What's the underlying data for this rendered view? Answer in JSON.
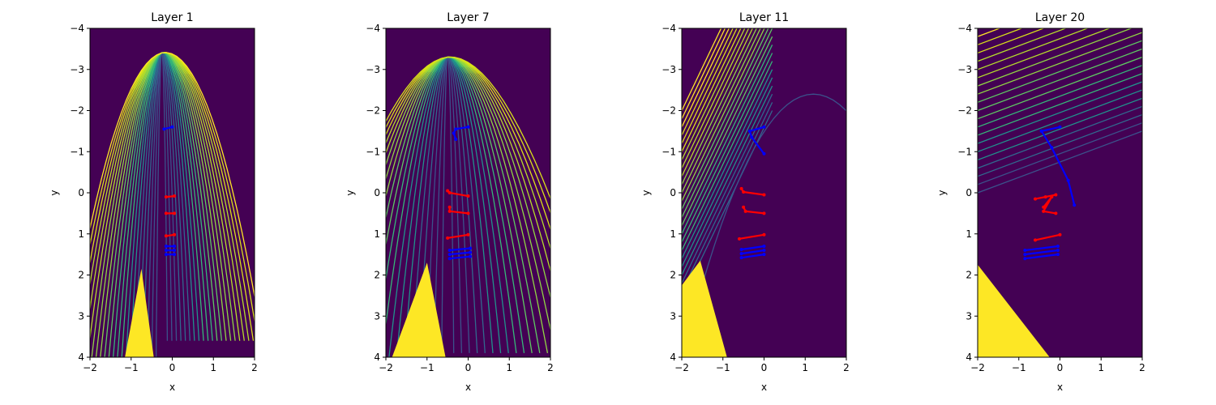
{
  "chart_data": {
    "type": "contour",
    "panels": [
      {
        "title": "Layer 1",
        "xlabel": "x",
        "ylabel": "y",
        "xlim": [
          -2,
          2
        ],
        "ylim": [
          4,
          -4
        ],
        "x_ticks": [
          "−2",
          "−1",
          "0",
          "1",
          "2"
        ],
        "y_ticks": [
          "−4",
          "−3",
          "−2",
          "−1",
          "0",
          "1",
          "2",
          "3",
          "4"
        ],
        "yellow_region": [
          [
            -0.75,
            1.85
          ],
          [
            -0.45,
            4.0
          ],
          [
            -1.15,
            4.0
          ]
        ],
        "contour_style": "steep curved lines rising to the left, dense near edges",
        "blue_trajectories": [
          [
            [
              -0.2,
              -1.55
            ],
            [
              0.0,
              -1.6
            ]
          ],
          [
            [
              -0.15,
              1.3
            ],
            [
              0.05,
              1.3
            ]
          ],
          [
            [
              -0.15,
              1.4
            ],
            [
              0.05,
              1.4
            ]
          ],
          [
            [
              -0.15,
              1.5
            ],
            [
              0.05,
              1.5
            ]
          ]
        ],
        "red_trajectories": [
          [
            [
              -0.15,
              0.5
            ],
            [
              0.05,
              0.5
            ]
          ],
          [
            [
              -0.15,
              0.1
            ],
            [
              0.05,
              0.08
            ]
          ],
          [
            [
              -0.15,
              1.05
            ],
            [
              0.05,
              1.02
            ]
          ]
        ]
      },
      {
        "title": "Layer 7",
        "xlabel": "x",
        "ylabel": "y",
        "xlim": [
          -2,
          2
        ],
        "ylim": [
          4,
          -4
        ],
        "x_ticks": [
          "−2",
          "−1",
          "0",
          "1",
          "2"
        ],
        "y_ticks": [
          "−4",
          "−3",
          "−2",
          "−1",
          "0",
          "1",
          "2",
          "3",
          "4"
        ],
        "yellow_region": [
          [
            -1.0,
            1.7
          ],
          [
            -0.55,
            4.0
          ],
          [
            -1.85,
            4.0
          ]
        ],
        "contour_style": "curved lines peaking near x=-0.5",
        "blue_trajectories": [
          [
            [
              -0.3,
              -1.3
            ],
            [
              -0.35,
              -1.45
            ],
            [
              -0.3,
              -1.55
            ],
            [
              0.0,
              -1.6
            ]
          ],
          [
            [
              -0.45,
              1.4
            ],
            [
              0.05,
              1.35
            ]
          ],
          [
            [
              -0.45,
              1.5
            ],
            [
              0.05,
              1.45
            ]
          ],
          [
            [
              -0.45,
              1.6
            ],
            [
              0.05,
              1.55
            ]
          ]
        ],
        "red_trajectories": [
          [
            [
              -0.45,
              0.35
            ],
            [
              -0.45,
              0.45
            ],
            [
              0.0,
              0.5
            ]
          ],
          [
            [
              -0.5,
              -0.05
            ],
            [
              -0.45,
              0.0
            ],
            [
              0.0,
              0.08
            ]
          ],
          [
            [
              -0.5,
              1.1
            ],
            [
              0.0,
              1.02
            ]
          ]
        ]
      },
      {
        "title": "Layer 11",
        "xlabel": "x",
        "ylabel": "y",
        "xlim": [
          -2,
          2
        ],
        "ylim": [
          4,
          -4
        ],
        "x_ticks": [
          "−2",
          "−1",
          "0",
          "1",
          "2"
        ],
        "y_ticks": [
          "−4",
          "−3",
          "−2",
          "−1",
          "0",
          "1",
          "2",
          "3",
          "4"
        ],
        "yellow_region": [
          [
            -2.0,
            2.25
          ],
          [
            -1.55,
            1.65
          ],
          [
            -0.9,
            4.0
          ],
          [
            -2.0,
            4.0
          ]
        ],
        "contour_style": "diagonal lines in upper-left, faint arc peaking near x=1.2",
        "blue_trajectories": [
          [
            [
              0.0,
              -0.95
            ],
            [
              -0.3,
              -1.35
            ],
            [
              -0.35,
              -1.5
            ],
            [
              0.0,
              -1.6
            ]
          ],
          [
            [
              -0.55,
              1.38
            ],
            [
              0.0,
              1.3
            ]
          ],
          [
            [
              -0.55,
              1.48
            ],
            [
              0.0,
              1.4
            ]
          ],
          [
            [
              -0.55,
              1.58
            ],
            [
              0.0,
              1.5
            ]
          ]
        ],
        "red_trajectories": [
          [
            [
              -0.5,
              0.35
            ],
            [
              -0.45,
              0.45
            ],
            [
              0.0,
              0.5
            ]
          ],
          [
            [
              -0.55,
              -0.1
            ],
            [
              -0.5,
              -0.02
            ],
            [
              0.0,
              0.05
            ]
          ],
          [
            [
              -0.6,
              1.12
            ],
            [
              0.0,
              1.02
            ]
          ]
        ]
      },
      {
        "title": "Layer 20",
        "xlabel": "x",
        "ylabel": "y",
        "xlim": [
          -2,
          2
        ],
        "ylim": [
          4,
          -4
        ],
        "x_ticks": [
          "−2",
          "−1",
          "0",
          "1",
          "2"
        ],
        "y_ticks": [
          "−4",
          "−3",
          "−2",
          "−1",
          "0",
          "1",
          "2",
          "3",
          "4"
        ],
        "yellow_region": [
          [
            -2.0,
            1.75
          ],
          [
            -0.25,
            4.0
          ],
          [
            -2.0,
            4.0
          ]
        ],
        "contour_style": "nearly straight diagonal lines, dense in the top band",
        "blue_trajectories": [
          [
            [
              0.35,
              0.3
            ],
            [
              0.2,
              -0.3
            ],
            [
              -0.2,
              -1.1
            ],
            [
              -0.45,
              -1.5
            ],
            [
              0.0,
              -1.6
            ]
          ],
          [
            [
              -0.85,
              1.4
            ],
            [
              -0.05,
              1.3
            ]
          ],
          [
            [
              -0.85,
              1.5
            ],
            [
              -0.05,
              1.4
            ]
          ],
          [
            [
              -0.85,
              1.6
            ],
            [
              -0.05,
              1.5
            ]
          ]
        ],
        "red_trajectories": [
          [
            [
              -0.4,
              0.35
            ],
            [
              -0.2,
              0.1
            ],
            [
              -0.4,
              0.45
            ],
            [
              -0.1,
              0.5
            ]
          ],
          [
            [
              -0.6,
              0.15
            ],
            [
              -0.35,
              0.1
            ],
            [
              -0.1,
              0.05
            ]
          ],
          [
            [
              -0.6,
              1.15
            ],
            [
              0.0,
              1.02
            ]
          ]
        ]
      }
    ]
  }
}
